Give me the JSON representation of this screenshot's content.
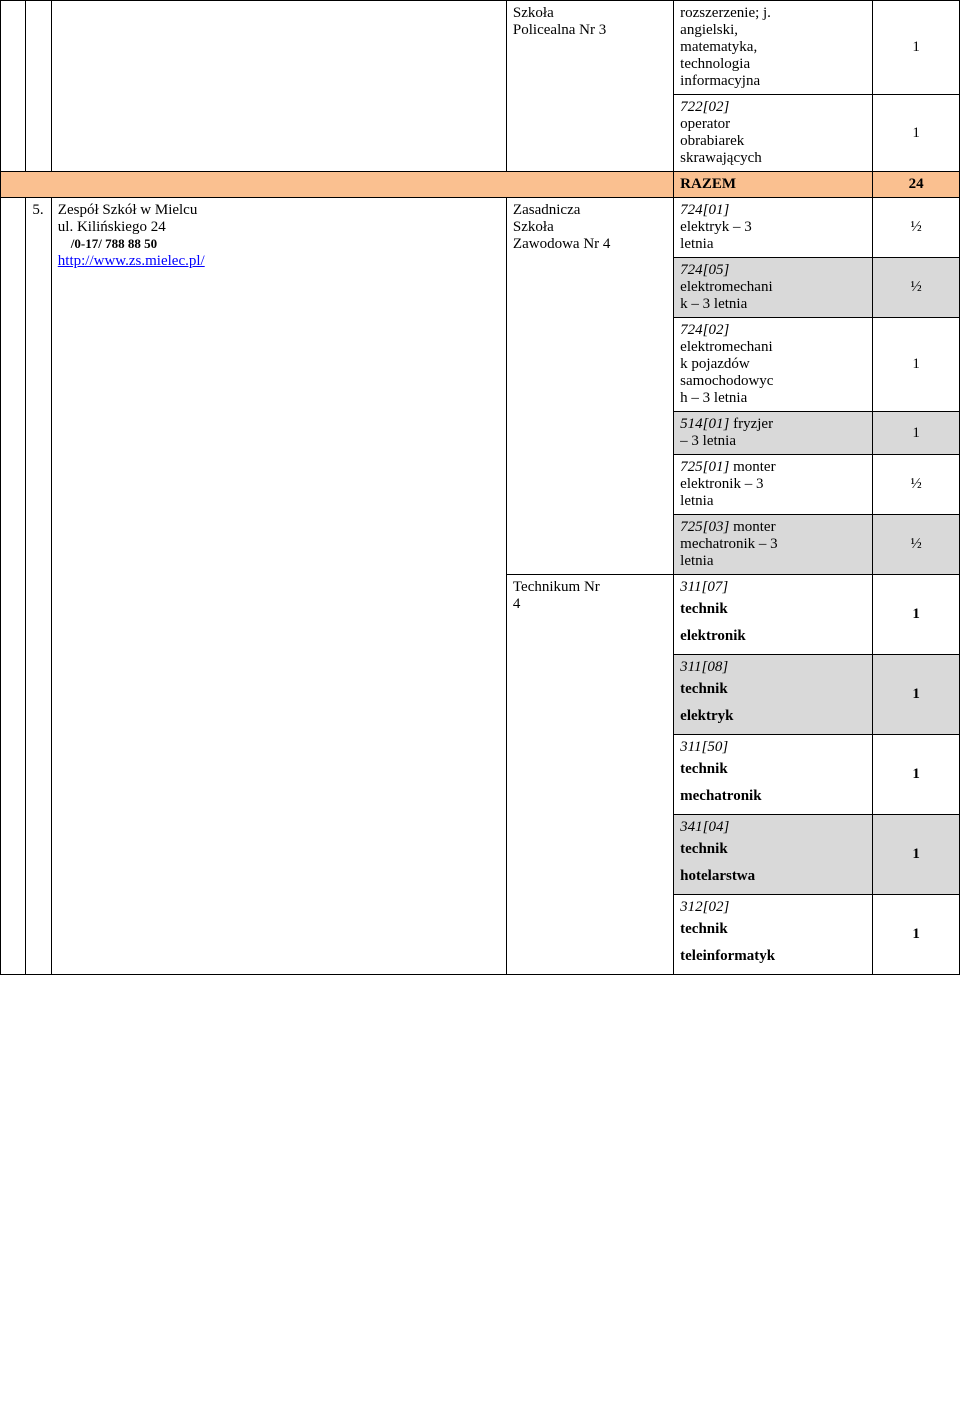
{
  "top": {
    "schoolLabel": "Szkoła\nPolicealna Nr 3",
    "ext": {
      "line1": "rozszerzenie; j.\nangielski,\nmatematyka,\ntechnologia\ninformacyjna",
      "val": "1"
    },
    "op": {
      "code": "722[02]",
      "text": "operator\nobrabiarek\nskrawających",
      "val": "1"
    }
  },
  "razem": {
    "label": "RAZEM",
    "val": "24"
  },
  "row5": {
    "num": "5.",
    "name": "Zespół Szkół w Mielcu",
    "addr": "ul. Kilińskiego 24",
    "phone": "/0-17/ 788 88 50",
    "url": "http://www.zs.mielec.pl/",
    "zasadnicza": "Zasadnicza\nSzkoła\nZawodowa Nr 4",
    "technikum": "Technikum Nr\n4",
    "zRows": [
      {
        "code": "724[01]",
        "text": "elektryk – 3\nletnia",
        "val": "½",
        "grey": false
      },
      {
        "code": "724[05]",
        "text": "elektromechani\nk – 3 letnia",
        "val": "½",
        "grey": true
      },
      {
        "code": "724[02]",
        "text": "elektromechani\nk pojazdów\nsamochodowyc\nh – 3 letnia",
        "val": "1",
        "grey": false
      },
      {
        "code": "514[01]",
        "text": "fryzjer\n– 3 letnia",
        "val": "1",
        "grey": true,
        "inlineCode": true
      },
      {
        "code": "725[01]",
        "text": "monter\nelektronik – 3\nletnia",
        "val": "½",
        "grey": false,
        "inlineCode": true
      },
      {
        "code": "725[03]",
        "text": "monter\nmechatronik – 3\nletnia",
        "val": "½",
        "grey": true,
        "inlineCode": true
      }
    ],
    "tRows": [
      {
        "code": "311[07]",
        "bold": "technik\nelektronik",
        "rest": "",
        "val": "1",
        "grey": false
      },
      {
        "code": "311[08]",
        "bold": "technik\nelektryk",
        "rest": "",
        "val": "1",
        "grey": true
      },
      {
        "code": "311[50]",
        "bold": "technik\nmechatronik",
        "rest": "",
        "val": "1",
        "grey": false
      },
      {
        "code": "341[04]",
        "bold": "technik\nhotelarstwa",
        "rest": "",
        "val": "1",
        "grey": true
      },
      {
        "code": "312[02]",
        "bold": "technik\nteleinformatyk",
        "rest": "",
        "val": "1",
        "grey": false
      }
    ]
  }
}
